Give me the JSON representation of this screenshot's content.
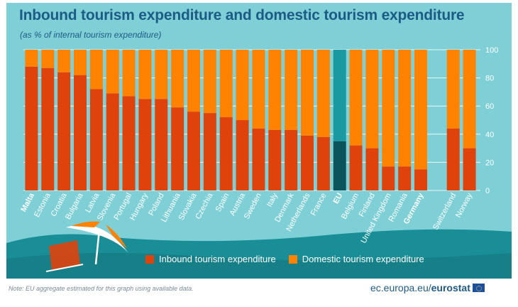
{
  "header": {
    "title": "Inbound tourism expenditure and domestic tourism expenditure",
    "subtitle": "(as % of internal tourism expenditure)"
  },
  "colors": {
    "inbound": "#e0420c",
    "domestic": "#ff8200",
    "eu_inbound": "#0b545c",
    "eu_domestic": "#1a9aa0",
    "axis_text": "#ffffff",
    "title": "#1d5b87"
  },
  "chart_data": {
    "type": "bar",
    "stacked": true,
    "title": "Inbound tourism expenditure and domestic tourism expenditure",
    "subtitle": "(as % of internal tourism expenditure)",
    "ylim": [
      0,
      100
    ],
    "yticks": [
      0,
      20,
      40,
      60,
      80,
      100
    ],
    "y_axis_position": "right",
    "categories": [
      "Malta",
      "Estonia",
      "Croatia",
      "Bulgaria",
      "Latvia",
      "Slovenia",
      "Portugal",
      "Hungary",
      "Poland",
      "Lithuania",
      "Slovakia",
      "Czechia",
      "Spain",
      "Austria",
      "Sweden",
      "Italy",
      "Denmark",
      "Netherlands",
      "France",
      "EU",
      "Belgium",
      "Finland",
      "United Kingdom",
      "Romania",
      "Germany",
      "",
      "Switzerland",
      "Norway"
    ],
    "bold_categories": [
      "Malta",
      "EU",
      "Germany"
    ],
    "highlight_category": "EU",
    "series": [
      {
        "name": "Inbound tourism expenditure",
        "values": [
          88,
          87,
          84,
          82,
          72,
          69,
          67,
          65,
          65,
          59,
          56,
          55,
          52,
          50,
          44,
          43,
          43,
          39,
          38,
          35,
          32,
          30,
          17,
          17,
          15,
          null,
          44,
          30
        ]
      },
      {
        "name": "Domestic tourism expenditure",
        "values": [
          12,
          13,
          16,
          18,
          28,
          31,
          33,
          35,
          35,
          41,
          44,
          45,
          48,
          50,
          56,
          57,
          57,
          61,
          62,
          65,
          68,
          70,
          83,
          83,
          85,
          null,
          56,
          70
        ]
      }
    ],
    "legend": [
      "Inbound tourism expenditure",
      "Domestic tourism expenditure"
    ],
    "legend_position": "bottom-center",
    "grid": true
  },
  "footer": {
    "note": "Note: EU aggregate estimated for this graph using available data.",
    "source_prefix": "ec.europa.eu/",
    "source_brand": "eurostat"
  }
}
